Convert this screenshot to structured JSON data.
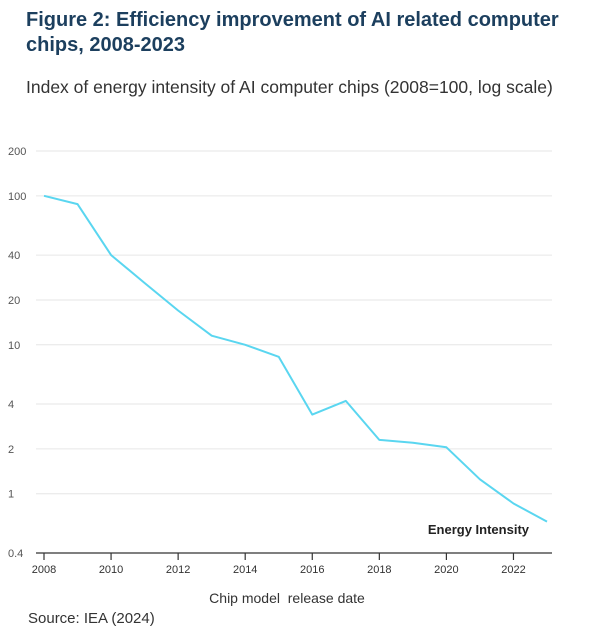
{
  "header": {
    "title": "Figure 2: Efficiency improvement of AI related computer chips, 2008-2023",
    "subtitle": "Index of energy intensity of AI computer chips (2008=100, log scale)"
  },
  "footer": {
    "source": "Source: IEA (2024)"
  },
  "colors": {
    "line": "#5ad6f0",
    "grid": "#e6e6e6",
    "axis": "#333333",
    "title": "#1c3f5e"
  },
  "chart_data": {
    "type": "line",
    "title": "Figure 2: Efficiency improvement of AI related computer chips, 2008-2023",
    "subtitle": "Index of energy intensity of AI computer chips (2008=100, log scale)",
    "xlabel": "Chip model  release date",
    "ylabel": "",
    "yscale": "log",
    "ylim": [
      0.4,
      200
    ],
    "xlim": [
      2008,
      2023
    ],
    "grid": true,
    "yticks": [
      200,
      100,
      40,
      20,
      10,
      4,
      2,
      1,
      0.4
    ],
    "ytick_labels": [
      "200",
      "100",
      "40",
      "20",
      "10",
      "4",
      "2",
      "1",
      "0.4"
    ],
    "xticks": [
      2008,
      2010,
      2012,
      2014,
      2016,
      2018,
      2020,
      2022
    ],
    "xtick_labels": [
      "2008",
      "2010",
      "2012",
      "2014",
      "2016",
      "2018",
      "2020",
      "2022"
    ],
    "series": [
      {
        "name": "Energy Intensity",
        "x": [
          2008,
          2009,
          2010,
          2011,
          2012,
          2013,
          2014,
          2015,
          2016,
          2017,
          2018,
          2019,
          2020,
          2021,
          2022,
          2023
        ],
        "values": [
          100,
          88,
          40,
          26,
          17,
          11.5,
          10,
          8.3,
          3.4,
          4.2,
          2.3,
          2.2,
          2.05,
          1.25,
          0.86,
          0.65
        ]
      }
    ]
  }
}
